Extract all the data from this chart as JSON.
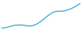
{
  "x": [
    0,
    1,
    2,
    3,
    4,
    5,
    6,
    7,
    8,
    9,
    10,
    11,
    12,
    13,
    14,
    15,
    16,
    17,
    18,
    19,
    20
  ],
  "y": [
    1,
    2,
    4,
    6,
    7,
    7,
    6,
    5,
    6,
    9,
    14,
    20,
    26,
    31,
    33,
    33,
    34,
    36,
    39,
    43,
    48
  ],
  "line_color": "#4bafd6",
  "line_width": 1.2,
  "background_color": "#ffffff",
  "xlim": [
    -0.3,
    20.3
  ],
  "ylim": [
    -2,
    54
  ]
}
